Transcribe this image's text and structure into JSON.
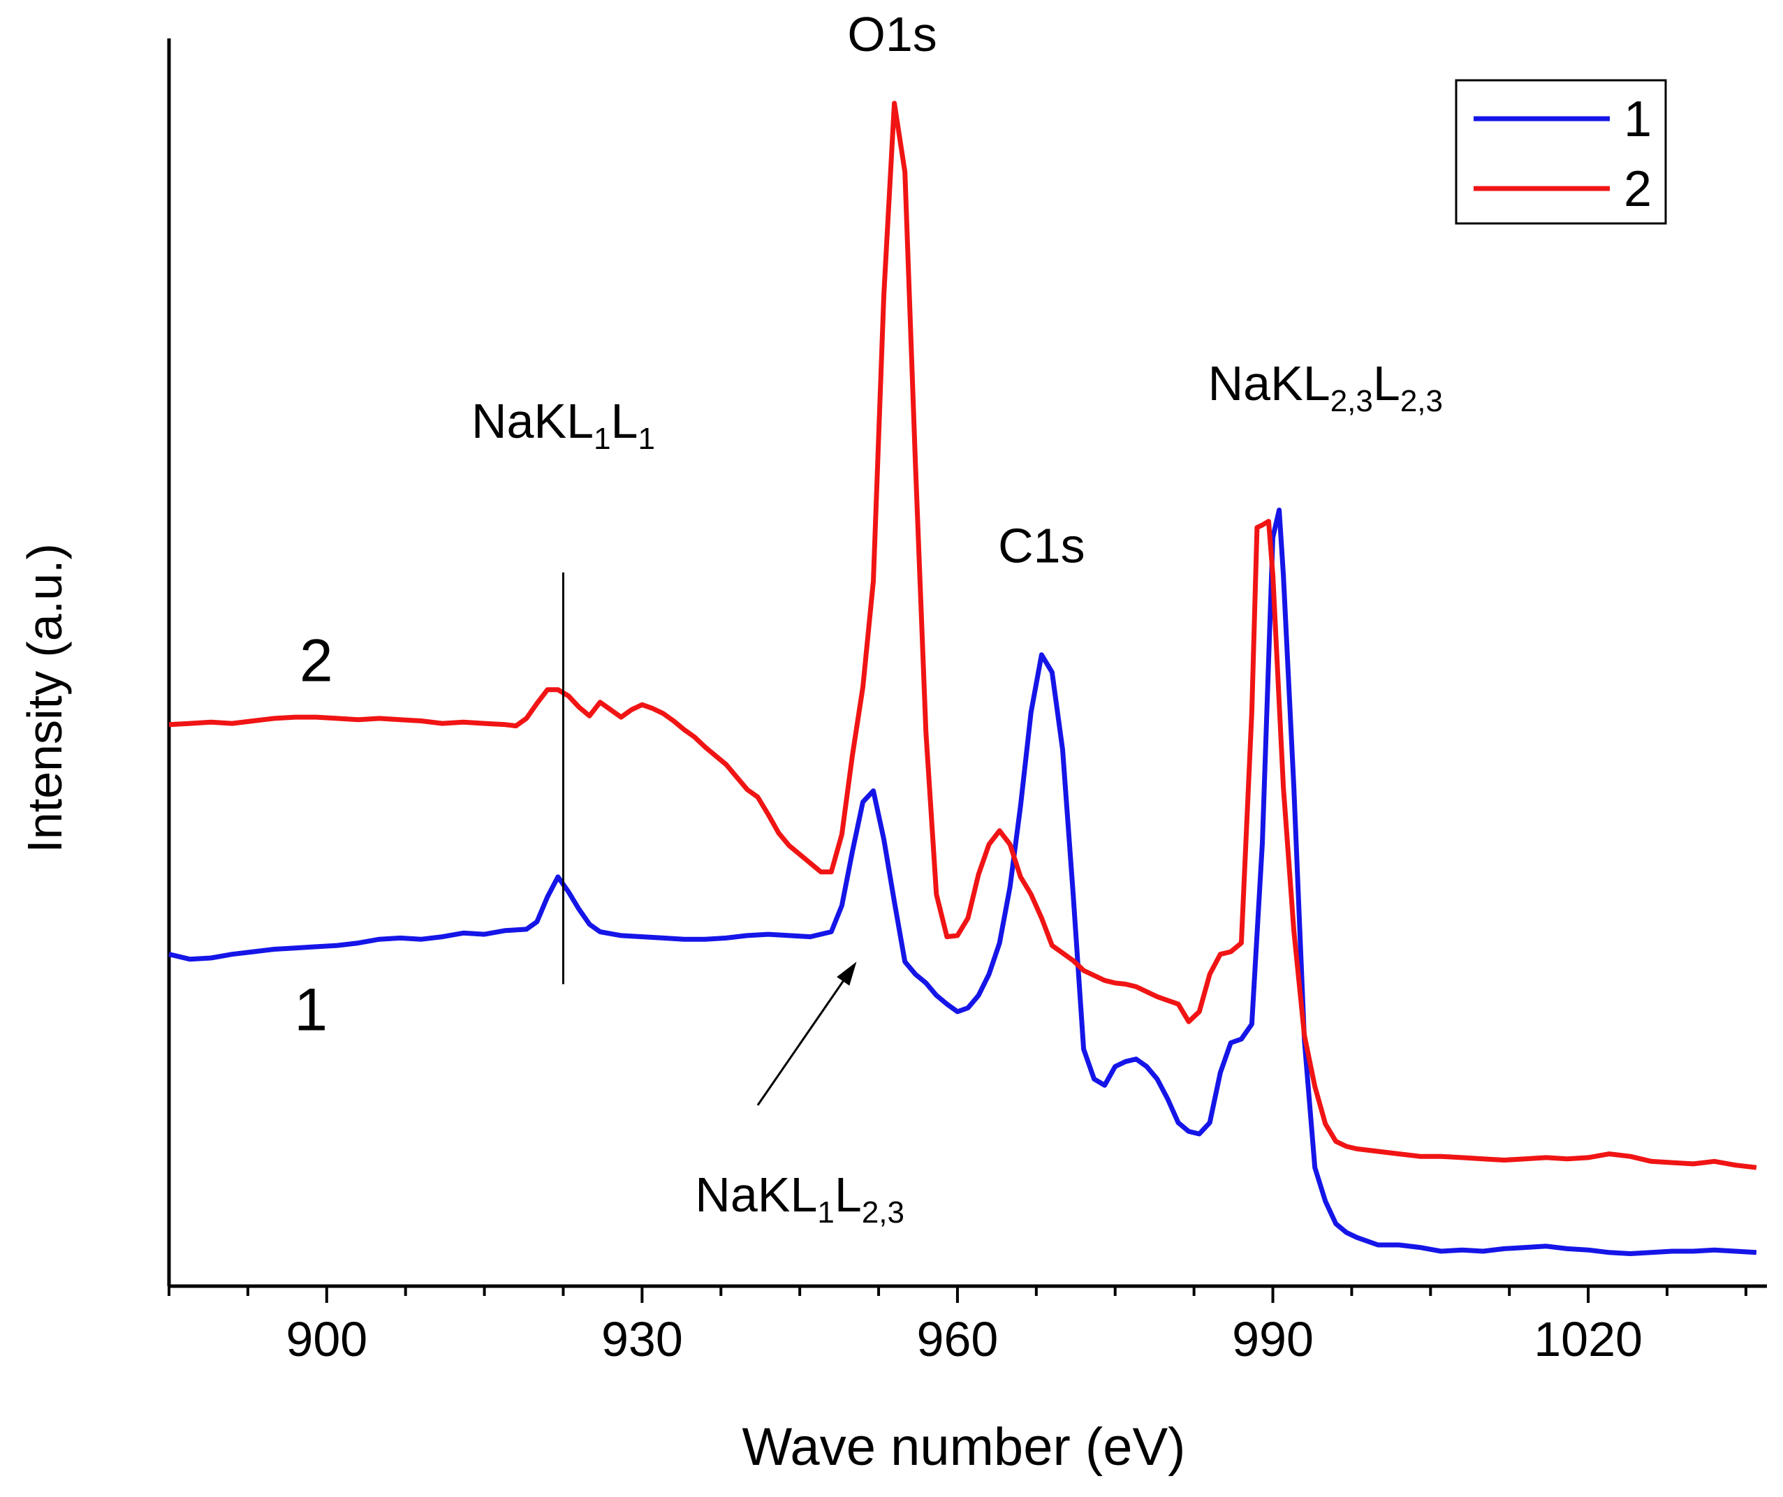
{
  "chart_data": {
    "type": "line",
    "title": "",
    "xlabel": "Wave number (eV)",
    "ylabel": "Intensity (a.u.)",
    "xlim": [
      885,
      1037
    ],
    "ylim": [
      0,
      100
    ],
    "x_ticks": [
      900,
      930,
      960,
      990,
      1020
    ],
    "x_tick_labels": [
      "900",
      "930",
      "960",
      "990",
      "1020"
    ],
    "x_minor_step": 7.5,
    "grid": false,
    "legend": {
      "position": "top-right",
      "entries": [
        {
          "label": "1",
          "color": "#1515e8"
        },
        {
          "label": "2",
          "color": "#f01414"
        }
      ]
    },
    "series": [
      {
        "name": "1",
        "color": "#1515e8",
        "points": [
          [
            885,
            26.6
          ],
          [
            887,
            26.2
          ],
          [
            889,
            26.3
          ],
          [
            891,
            26.6
          ],
          [
            893,
            26.8
          ],
          [
            895,
            27.0
          ],
          [
            897,
            27.1
          ],
          [
            899,
            27.2
          ],
          [
            901,
            27.3
          ],
          [
            903,
            27.5
          ],
          [
            905,
            27.8
          ],
          [
            907,
            27.9
          ],
          [
            909,
            27.8
          ],
          [
            911,
            28.0
          ],
          [
            913,
            28.3
          ],
          [
            915,
            28.2
          ],
          [
            917,
            28.5
          ],
          [
            919,
            28.6
          ],
          [
            920,
            29.2
          ],
          [
            921,
            31.2
          ],
          [
            922,
            32.8
          ],
          [
            923,
            31.6
          ],
          [
            924,
            30.2
          ],
          [
            925,
            29.0
          ],
          [
            926,
            28.4
          ],
          [
            928,
            28.1
          ],
          [
            930,
            28.0
          ],
          [
            932,
            27.9
          ],
          [
            934,
            27.8
          ],
          [
            936,
            27.8
          ],
          [
            938,
            27.9
          ],
          [
            940,
            28.1
          ],
          [
            942,
            28.2
          ],
          [
            944,
            28.1
          ],
          [
            946,
            28.0
          ],
          [
            948,
            28.4
          ],
          [
            949,
            30.5
          ],
          [
            950,
            34.8
          ],
          [
            951,
            38.8
          ],
          [
            952,
            39.7
          ],
          [
            953,
            35.8
          ],
          [
            954,
            30.8
          ],
          [
            955,
            26.0
          ],
          [
            956,
            25.0
          ],
          [
            957,
            24.3
          ],
          [
            958,
            23.3
          ],
          [
            959,
            22.6
          ],
          [
            960,
            22.0
          ],
          [
            961,
            22.3
          ],
          [
            962,
            23.3
          ],
          [
            963,
            25.0
          ],
          [
            964,
            27.5
          ],
          [
            965,
            32.0
          ],
          [
            966,
            38.5
          ],
          [
            967,
            46.0
          ],
          [
            968,
            50.6
          ],
          [
            969,
            49.2
          ],
          [
            970,
            43.0
          ],
          [
            971,
            31.5
          ],
          [
            972,
            19.0
          ],
          [
            973,
            16.6
          ],
          [
            974,
            16.1
          ],
          [
            975,
            17.6
          ],
          [
            976,
            18.0
          ],
          [
            977,
            18.2
          ],
          [
            978,
            17.6
          ],
          [
            979,
            16.6
          ],
          [
            980,
            15.0
          ],
          [
            981,
            13.1
          ],
          [
            982,
            12.4
          ],
          [
            983,
            12.2
          ],
          [
            984,
            13.1
          ],
          [
            985,
            17.1
          ],
          [
            986,
            19.5
          ],
          [
            987,
            19.8
          ],
          [
            988,
            21.0
          ],
          [
            989,
            35.5
          ],
          [
            990,
            60.0
          ],
          [
            990.6,
            62.2
          ],
          [
            991,
            57.0
          ],
          [
            992,
            40.0
          ],
          [
            993,
            19.7
          ],
          [
            994,
            9.5
          ],
          [
            995,
            6.8
          ],
          [
            996,
            5.0
          ],
          [
            997,
            4.3
          ],
          [
            998,
            3.9
          ],
          [
            1000,
            3.3
          ],
          [
            1002,
            3.3
          ],
          [
            1004,
            3.1
          ],
          [
            1006,
            2.8
          ],
          [
            1008,
            2.9
          ],
          [
            1010,
            2.8
          ],
          [
            1012,
            3.0
          ],
          [
            1014,
            3.1
          ],
          [
            1016,
            3.2
          ],
          [
            1018,
            3.0
          ],
          [
            1020,
            2.9
          ],
          [
            1022,
            2.7
          ],
          [
            1024,
            2.6
          ],
          [
            1026,
            2.7
          ],
          [
            1028,
            2.8
          ],
          [
            1030,
            2.8
          ],
          [
            1032,
            2.9
          ],
          [
            1034,
            2.8
          ],
          [
            1036,
            2.7
          ]
        ]
      },
      {
        "name": "2",
        "color": "#f01414",
        "points": [
          [
            885,
            45.0
          ],
          [
            887,
            45.1
          ],
          [
            889,
            45.2
          ],
          [
            891,
            45.1
          ],
          [
            893,
            45.3
          ],
          [
            895,
            45.5
          ],
          [
            897,
            45.6
          ],
          [
            899,
            45.6
          ],
          [
            901,
            45.5
          ],
          [
            903,
            45.4
          ],
          [
            905,
            45.5
          ],
          [
            907,
            45.4
          ],
          [
            909,
            45.3
          ],
          [
            911,
            45.1
          ],
          [
            913,
            45.2
          ],
          [
            915,
            45.1
          ],
          [
            917,
            45.0
          ],
          [
            918,
            44.9
          ],
          [
            919,
            45.5
          ],
          [
            920,
            46.7
          ],
          [
            921,
            47.8
          ],
          [
            922,
            47.8
          ],
          [
            923,
            47.3
          ],
          [
            924,
            46.4
          ],
          [
            925,
            45.7
          ],
          [
            926,
            46.8
          ],
          [
            927,
            46.2
          ],
          [
            928,
            45.6
          ],
          [
            929,
            46.2
          ],
          [
            930,
            46.6
          ],
          [
            931,
            46.3
          ],
          [
            932,
            45.9
          ],
          [
            933,
            45.3
          ],
          [
            934,
            44.6
          ],
          [
            935,
            44.0
          ],
          [
            936,
            43.2
          ],
          [
            937,
            42.5
          ],
          [
            938,
            41.8
          ],
          [
            939,
            40.8
          ],
          [
            940,
            39.8
          ],
          [
            941,
            39.2
          ],
          [
            942,
            37.8
          ],
          [
            943,
            36.3
          ],
          [
            944,
            35.3
          ],
          [
            945,
            34.6
          ],
          [
            946,
            33.9
          ],
          [
            947,
            33.2
          ],
          [
            948,
            33.2
          ],
          [
            949,
            36.2
          ],
          [
            950,
            42.5
          ],
          [
            951,
            48.0
          ],
          [
            952,
            56.5
          ],
          [
            953,
            79.5
          ],
          [
            954,
            94.8
          ],
          [
            955,
            89.3
          ],
          [
            956,
            66.0
          ],
          [
            957,
            44.4
          ],
          [
            958,
            31.4
          ],
          [
            959,
            28.0
          ],
          [
            960,
            28.1
          ],
          [
            961,
            29.5
          ],
          [
            962,
            33.0
          ],
          [
            963,
            35.4
          ],
          [
            964,
            36.5
          ],
          [
            965,
            35.4
          ],
          [
            966,
            32.8
          ],
          [
            967,
            31.4
          ],
          [
            968,
            29.5
          ],
          [
            969,
            27.3
          ],
          [
            970,
            26.7
          ],
          [
            971,
            26.1
          ],
          [
            972,
            25.3
          ],
          [
            973,
            24.9
          ],
          [
            974,
            24.5
          ],
          [
            975,
            24.3
          ],
          [
            976,
            24.2
          ],
          [
            977,
            24.0
          ],
          [
            978,
            23.6
          ],
          [
            979,
            23.2
          ],
          [
            980,
            22.9
          ],
          [
            981,
            22.6
          ],
          [
            982,
            21.2
          ],
          [
            983,
            22.0
          ],
          [
            984,
            25.0
          ],
          [
            985,
            26.6
          ],
          [
            986,
            26.8
          ],
          [
            987,
            27.5
          ],
          [
            988,
            46.0
          ],
          [
            988.5,
            60.8
          ],
          [
            989,
            61.0
          ],
          [
            989.6,
            61.3
          ],
          [
            990,
            57.0
          ],
          [
            991,
            40.0
          ],
          [
            992,
            28.5
          ],
          [
            993,
            20.1
          ],
          [
            994,
            16.0
          ],
          [
            995,
            13.0
          ],
          [
            996,
            11.6
          ],
          [
            997,
            11.2
          ],
          [
            998,
            11.0
          ],
          [
            1000,
            10.8
          ],
          [
            1002,
            10.6
          ],
          [
            1004,
            10.4
          ],
          [
            1006,
            10.4
          ],
          [
            1008,
            10.3
          ],
          [
            1010,
            10.2
          ],
          [
            1012,
            10.1
          ],
          [
            1014,
            10.2
          ],
          [
            1016,
            10.3
          ],
          [
            1018,
            10.2
          ],
          [
            1020,
            10.3
          ],
          [
            1022,
            10.6
          ],
          [
            1024,
            10.4
          ],
          [
            1026,
            10.0
          ],
          [
            1028,
            9.9
          ],
          [
            1030,
            9.8
          ],
          [
            1032,
            10.0
          ],
          [
            1034,
            9.7
          ],
          [
            1036,
            9.5
          ]
        ]
      }
    ],
    "annotations": [
      {
        "name": "NaKL1L1",
        "base": "NaKL",
        "sub1": "1",
        "mid": "L",
        "sub2": "1",
        "x": 922.5,
        "y": 68,
        "marker_line": {
          "x": 922.5,
          "y_from": 24.2,
          "y_to": 57.2
        }
      },
      {
        "name": "O1s",
        "text": "O1s",
        "x": 953.8,
        "y": 99
      },
      {
        "name": "C1s",
        "text": "C1s",
        "x": 968,
        "y": 58
      },
      {
        "name": "NaKL23L23",
        "base": "NaKL",
        "sub1": "2,3",
        "mid": "L",
        "sub2": "2,3",
        "x": 995,
        "y": 71
      },
      {
        "name": "NaKL1L23",
        "base": "NaKL",
        "sub1": "1",
        "mid": "L",
        "sub2": "2,3",
        "x": 945,
        "y": 6,
        "arrow": {
          "from": [
            941,
            14.5
          ],
          "to": [
            950.4,
            26.0
          ]
        }
      }
    ],
    "curve_labels": [
      {
        "series": "2",
        "text": "2",
        "x": 899,
        "y": 48.5
      },
      {
        "series": "1",
        "text": "1",
        "x": 898.5,
        "y": 20.5
      }
    ]
  }
}
